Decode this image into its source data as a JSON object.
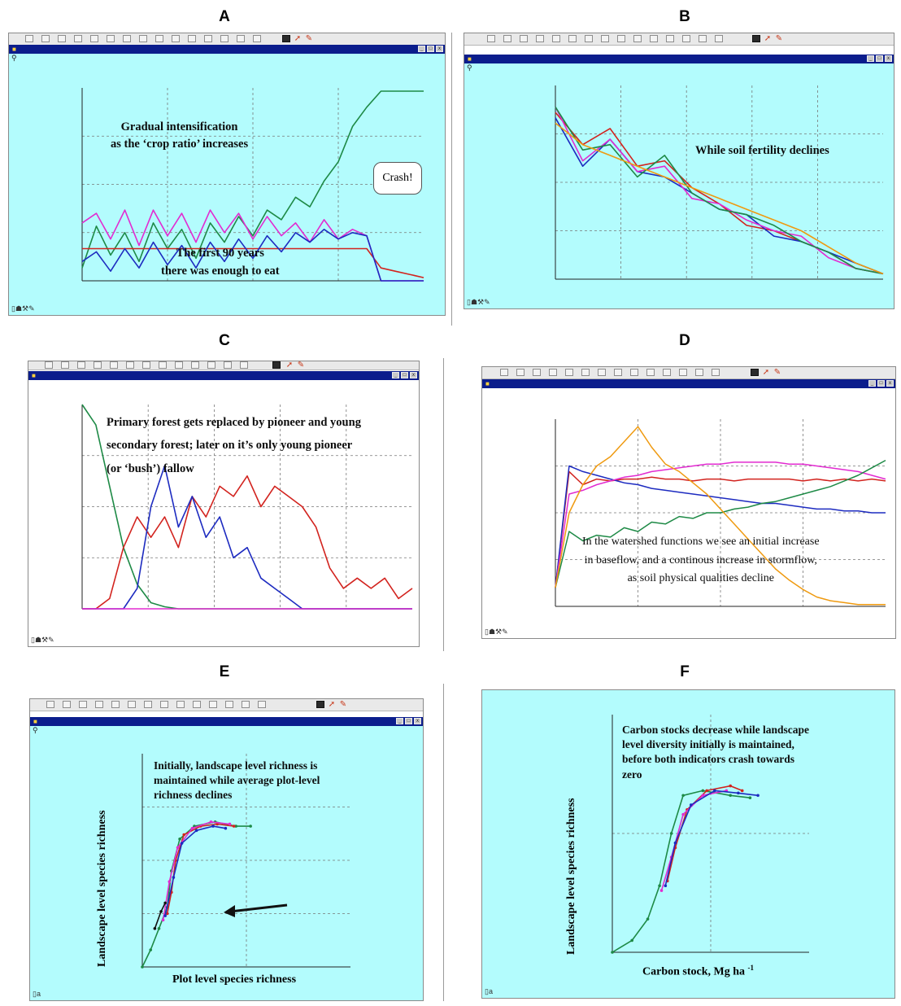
{
  "panel_labels": [
    "A",
    "B",
    "C",
    "D",
    "E",
    "F"
  ],
  "colors": {
    "green": "#1e8a46",
    "red": "#d2231e",
    "magenta": "#e22bd1",
    "blue": "#1d2bc0",
    "orange": "#ef9a10",
    "black": "#111111",
    "chart_bg": "#b3fcfd"
  },
  "annotations": {
    "a1": "Gradual intensification",
    "a2": "as the ‘crop ratio’ increases",
    "a3": "The first 90 years",
    "a4": "there was enough to eat",
    "a_bubble": "Crash!",
    "b1": "While soil fertility declines",
    "c1": "Primary forest gets replaced by pioneer and young",
    "c2": "secondary forest; later on it’s only young pioneer",
    "c3": "(or ‘bush’) fallow",
    "d1": "In the watershed functions we see an initial increase",
    "d2": "in baseflow, and a continous increase in stormflow,",
    "d3": "as soil physical qualities decline",
    "e1": "Initially, landscape level richness is",
    "e2": "maintained while average plot-level",
    "e3": "richness declines",
    "f1": "Carbon stocks decrease while landscape",
    "f2": "level diversity initially is maintained,",
    "f3": "before both indicators crash towards",
    "f4": "zero"
  },
  "axis_text": {
    "e_ylabel": "Landscape level species richness",
    "e_xlabel": "Plot level species richness",
    "f_ylabel": "Landscape level species richness",
    "f_xlabel": "Carbon stock, Mg ha",
    "f_xlabel_sup": "-1"
  },
  "chart_data": [
    {
      "panel": "A",
      "type": "line",
      "x": [
        0,
        5,
        10,
        15,
        20,
        25,
        30,
        35,
        40,
        45,
        50,
        55,
        60,
        65,
        70,
        75,
        80,
        85,
        90,
        95,
        100,
        105,
        110,
        115,
        120
      ],
      "series": [
        {
          "color": "#1e8a46",
          "values": [
            4,
            17,
            8,
            15,
            6,
            18,
            10,
            16,
            7,
            18,
            12,
            20,
            14,
            22,
            19,
            26,
            23,
            31,
            37,
            48,
            54,
            59,
            59,
            59,
            59
          ]
        },
        {
          "color": "#d2231e",
          "values": [
            10,
            10,
            10,
            10,
            10,
            10,
            10,
            10,
            10,
            10,
            10,
            10,
            10,
            10,
            10,
            10,
            10,
            10,
            10,
            10,
            10,
            4,
            3,
            2,
            1
          ]
        },
        {
          "color": "#e22bd1",
          "values": [
            18,
            21,
            13,
            22,
            11,
            22,
            14,
            21,
            12,
            22,
            15,
            21,
            13,
            20,
            14,
            18,
            12,
            19,
            13,
            16,
            14,
            0,
            0,
            0,
            0
          ]
        },
        {
          "color": "#1d2bc0",
          "values": [
            6,
            9,
            3,
            10,
            4,
            12,
            5,
            11,
            4,
            12,
            6,
            13,
            7,
            14,
            9,
            15,
            12,
            16,
            13,
            15,
            14,
            0,
            0,
            0,
            0
          ]
        }
      ],
      "ylim": [
        0,
        60
      ],
      "xlim": [
        0,
        120
      ]
    },
    {
      "panel": "B",
      "type": "line",
      "x": [
        0,
        10,
        20,
        30,
        40,
        50,
        60,
        70,
        80,
        90,
        100,
        110,
        120
      ],
      "series": [
        {
          "color": "#d2231e",
          "values": [
            31,
            25,
            28,
            21,
            22,
            17,
            14,
            10,
            9,
            7,
            5,
            2,
            1
          ]
        },
        {
          "color": "#1d2bc0",
          "values": [
            30,
            21,
            26,
            20,
            19,
            16,
            13,
            12,
            8,
            7,
            5,
            3,
            1
          ]
        },
        {
          "color": "#e22bd1",
          "values": [
            32,
            22,
            26,
            20,
            21,
            15,
            14,
            11,
            9,
            8,
            4,
            2,
            1
          ]
        },
        {
          "color": "#1e8a46",
          "values": [
            32,
            24,
            25,
            19,
            23,
            16,
            13,
            12,
            10,
            7,
            5,
            2,
            1
          ]
        },
        {
          "color": "#ef9a10",
          "values": [
            29,
            25,
            23,
            21,
            19,
            17,
            15,
            13,
            11,
            9,
            6,
            3,
            1
          ]
        }
      ],
      "ylim": [
        0,
        36
      ],
      "xlim": [
        0,
        120
      ]
    },
    {
      "panel": "C",
      "type": "line",
      "x": [
        0,
        5,
        10,
        15,
        20,
        25,
        30,
        35,
        40,
        45,
        50,
        55,
        60,
        65,
        70,
        75,
        80,
        85,
        90,
        95,
        100,
        105,
        110,
        115,
        120
      ],
      "series": [
        {
          "color": "#1e8a46",
          "values": [
            100,
            90,
            60,
            30,
            12,
            3,
            1,
            0,
            0,
            0,
            0,
            0,
            0,
            0,
            0,
            0,
            0,
            0,
            0,
            0,
            0,
            0,
            0,
            0,
            0
          ]
        },
        {
          "color": "#d2231e",
          "values": [
            0,
            0,
            5,
            30,
            45,
            35,
            45,
            30,
            55,
            45,
            60,
            55,
            65,
            50,
            60,
            55,
            50,
            40,
            20,
            10,
            15,
            10,
            15,
            5,
            10
          ]
        },
        {
          "color": "#1d2bc0",
          "values": [
            0,
            0,
            0,
            0,
            10,
            50,
            70,
            40,
            55,
            35,
            45,
            25,
            30,
            15,
            10,
            5,
            0,
            0,
            0,
            0,
            0,
            0,
            0,
            0,
            0
          ]
        },
        {
          "color": "#e22bd1",
          "values": [
            0,
            0,
            0,
            0,
            0,
            0,
            0,
            0,
            0,
            0,
            0,
            0,
            0,
            0,
            0,
            0,
            0,
            0,
            0,
            0,
            0,
            0,
            0,
            0,
            0
          ]
        }
      ],
      "ylim": [
        0,
        100
      ],
      "xlim": [
        0,
        120
      ]
    },
    {
      "panel": "D",
      "type": "line",
      "x": [
        0,
        5,
        10,
        15,
        20,
        25,
        30,
        35,
        40,
        45,
        50,
        55,
        60,
        65,
        70,
        75,
        80,
        85,
        90,
        95,
        100,
        105,
        110,
        115,
        120
      ],
      "series": [
        {
          "color": "#d2231e",
          "values": [
            10,
            72,
            65,
            68,
            67,
            68,
            68,
            69,
            68,
            68,
            67,
            68,
            68,
            67,
            68,
            68,
            68,
            68,
            67,
            68,
            67,
            68,
            67,
            68,
            67
          ]
        },
        {
          "color": "#1d2bc0",
          "values": [
            10,
            75,
            72,
            70,
            68,
            66,
            65,
            63,
            62,
            61,
            60,
            59,
            58,
            57,
            56,
            55,
            55,
            54,
            53,
            52,
            52,
            51,
            51,
            50,
            50
          ]
        },
        {
          "color": "#e22bd1",
          "values": [
            10,
            60,
            62,
            65,
            67,
            69,
            70,
            72,
            73,
            74,
            75,
            76,
            76,
            77,
            77,
            77,
            77,
            76,
            76,
            75,
            74,
            73,
            72,
            70,
            68
          ]
        },
        {
          "color": "#1e8a46",
          "values": [
            10,
            40,
            35,
            38,
            37,
            42,
            40,
            45,
            44,
            48,
            47,
            50,
            50,
            52,
            53,
            55,
            56,
            58,
            60,
            62,
            64,
            67,
            70,
            74,
            78
          ]
        },
        {
          "color": "#ef9a10",
          "values": [
            10,
            50,
            65,
            75,
            80,
            88,
            96,
            85,
            76,
            72,
            66,
            60,
            52,
            44,
            36,
            28,
            20,
            14,
            9,
            5,
            3,
            2,
            1,
            1,
            1
          ]
        }
      ],
      "ylim": [
        0,
        100
      ],
      "xlim": [
        0,
        120
      ]
    },
    {
      "panel": "E",
      "type": "scatter",
      "series": [
        {
          "color": "#1e8a46",
          "points": [
            [
              0,
              0
            ],
            [
              4,
              8
            ],
            [
              8,
              18
            ],
            [
              12,
              28
            ],
            [
              14,
              45
            ],
            [
              18,
              60
            ],
            [
              25,
              66
            ],
            [
              35,
              68
            ],
            [
              45,
              66
            ],
            [
              52,
              66
            ]
          ]
        },
        {
          "color": "#d2231e",
          "points": [
            [
              12,
              25
            ],
            [
              14,
              35
            ],
            [
              16,
              50
            ],
            [
              20,
              62
            ],
            [
              28,
              66
            ],
            [
              36,
              67
            ],
            [
              44,
              66
            ]
          ]
        },
        {
          "color": "#e22bd1",
          "points": [
            [
              10,
              22
            ],
            [
              13,
              40
            ],
            [
              17,
              56
            ],
            [
              24,
              65
            ],
            [
              33,
              68
            ],
            [
              42,
              67
            ]
          ]
        },
        {
          "color": "#1d2bc0",
          "points": [
            [
              11,
              24
            ],
            [
              15,
              42
            ],
            [
              19,
              58
            ],
            [
              26,
              64
            ],
            [
              34,
              66
            ],
            [
              40,
              65
            ]
          ]
        },
        {
          "color": "#111111",
          "points": [
            [
              6,
              18
            ],
            [
              9,
              26
            ],
            [
              11,
              30
            ]
          ]
        }
      ],
      "xlim": [
        0,
        100
      ],
      "ylim": [
        0,
        100
      ]
    },
    {
      "panel": "F",
      "type": "scatter",
      "series": [
        {
          "color": "#1e8a46",
          "points": [
            [
              0,
              0
            ],
            [
              10,
              5
            ],
            [
              18,
              14
            ],
            [
              24,
              28
            ],
            [
              30,
              50
            ],
            [
              36,
              66
            ],
            [
              46,
              68
            ],
            [
              60,
              66
            ],
            [
              70,
              65
            ]
          ]
        },
        {
          "color": "#d2231e",
          "points": [
            [
              28,
              30
            ],
            [
              32,
              44
            ],
            [
              38,
              60
            ],
            [
              48,
              68
            ],
            [
              60,
              70
            ],
            [
              66,
              68
            ]
          ]
        },
        {
          "color": "#e22bd1",
          "points": [
            [
              25,
              26
            ],
            [
              30,
              40
            ],
            [
              36,
              58
            ],
            [
              46,
              66
            ],
            [
              58,
              68
            ]
          ]
        },
        {
          "color": "#1d2bc0",
          "points": [
            [
              27,
              28
            ],
            [
              32,
              46
            ],
            [
              40,
              62
            ],
            [
              52,
              68
            ],
            [
              64,
              67
            ],
            [
              74,
              66
            ]
          ]
        }
      ],
      "xlim": [
        0,
        100
      ],
      "ylim": [
        0,
        100
      ]
    }
  ]
}
